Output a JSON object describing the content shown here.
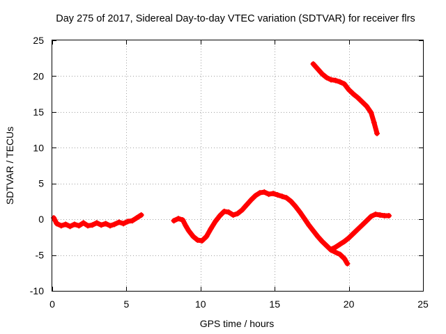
{
  "chart_data": {
    "type": "scatter",
    "title": "Day 275 of 2017, Sidereal Day-to-day VTEC variation (SDTVAR) for receiver flrs",
    "xlabel": "GPS time / hours",
    "ylabel": "SDTVAR / TECUs",
    "xlim": [
      0,
      25
    ],
    "ylim": [
      -10,
      25
    ],
    "xticks": [
      0,
      5,
      10,
      15,
      20,
      25
    ],
    "yticks": [
      -10,
      -5,
      0,
      5,
      10,
      15,
      20,
      25
    ],
    "grid": true,
    "marker": "+",
    "color": "#ff0000",
    "series": [
      {
        "name": "flrs",
        "segments": [
          [
            [
              0.1,
              0.2
            ],
            [
              0.3,
              -0.6
            ],
            [
              0.6,
              -0.9
            ],
            [
              0.9,
              -0.7
            ],
            [
              1.2,
              -1.0
            ],
            [
              1.5,
              -0.7
            ],
            [
              1.8,
              -0.9
            ],
            [
              2.1,
              -0.5
            ],
            [
              2.4,
              -0.9
            ],
            [
              2.7,
              -0.8
            ],
            [
              3.0,
              -0.5
            ],
            [
              3.3,
              -0.8
            ],
            [
              3.6,
              -0.6
            ],
            [
              3.9,
              -0.9
            ],
            [
              4.2,
              -0.7
            ],
            [
              4.5,
              -0.4
            ],
            [
              4.8,
              -0.6
            ],
            [
              5.1,
              -0.3
            ],
            [
              5.4,
              -0.2
            ],
            [
              5.7,
              0.2
            ],
            [
              6.0,
              0.6
            ]
          ],
          [
            [
              8.2,
              -0.2
            ],
            [
              8.5,
              0.1
            ],
            [
              8.8,
              -0.1
            ],
            [
              9.0,
              -0.9
            ],
            [
              9.2,
              -1.6
            ],
            [
              9.5,
              -2.4
            ],
            [
              9.8,
              -2.9
            ],
            [
              10.1,
              -3.0
            ],
            [
              10.4,
              -2.4
            ],
            [
              10.7,
              -1.3
            ],
            [
              11.0,
              -0.3
            ],
            [
              11.3,
              0.5
            ],
            [
              11.6,
              1.1
            ],
            [
              11.9,
              1.0
            ],
            [
              12.2,
              0.6
            ],
            [
              12.5,
              0.8
            ],
            [
              12.8,
              1.3
            ],
            [
              13.1,
              2.0
            ],
            [
              13.4,
              2.7
            ],
            [
              13.7,
              3.3
            ],
            [
              14.0,
              3.7
            ],
            [
              14.3,
              3.8
            ],
            [
              14.6,
              3.5
            ],
            [
              14.9,
              3.6
            ],
            [
              15.2,
              3.4
            ],
            [
              15.5,
              3.2
            ],
            [
              15.8,
              3.0
            ],
            [
              16.1,
              2.5
            ],
            [
              16.4,
              1.8
            ],
            [
              16.7,
              1.0
            ],
            [
              17.0,
              0.1
            ],
            [
              17.3,
              -0.8
            ],
            [
              17.6,
              -1.6
            ],
            [
              17.9,
              -2.4
            ],
            [
              18.2,
              -3.1
            ],
            [
              18.5,
              -3.7
            ],
            [
              18.8,
              -4.3
            ],
            [
              19.1,
              -4.6
            ],
            [
              19.4,
              -4.9
            ],
            [
              19.7,
              -5.5
            ],
            [
              19.9,
              -6.2
            ]
          ],
          [
            [
              18.8,
              -4.2
            ],
            [
              19.1,
              -3.9
            ],
            [
              19.4,
              -3.5
            ],
            [
              19.7,
              -3.1
            ],
            [
              20.0,
              -2.6
            ],
            [
              20.3,
              -2.0
            ],
            [
              20.6,
              -1.4
            ],
            [
              20.9,
              -0.8
            ],
            [
              21.2,
              -0.2
            ],
            [
              21.5,
              0.4
            ],
            [
              21.8,
              0.7
            ],
            [
              22.1,
              0.6
            ],
            [
              22.4,
              0.5
            ],
            [
              22.7,
              0.5
            ]
          ],
          [
            [
              17.6,
              21.7
            ],
            [
              17.9,
              21.0
            ],
            [
              18.2,
              20.3
            ],
            [
              18.5,
              19.8
            ],
            [
              18.8,
              19.5
            ],
            [
              19.1,
              19.4
            ],
            [
              19.4,
              19.2
            ],
            [
              19.7,
              18.9
            ],
            [
              20.0,
              18.1
            ],
            [
              20.3,
              17.5
            ],
            [
              20.6,
              17.0
            ],
            [
              20.9,
              16.4
            ],
            [
              21.2,
              15.8
            ],
            [
              21.5,
              14.9
            ],
            [
              21.7,
              13.5
            ],
            [
              21.9,
              12.0
            ]
          ]
        ]
      }
    ]
  }
}
